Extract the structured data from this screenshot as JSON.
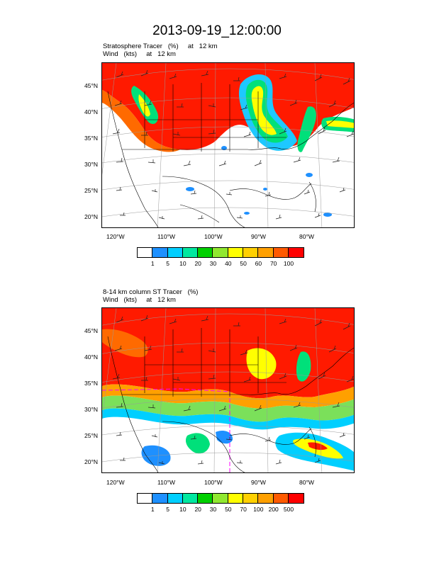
{
  "page_title": "2013-09-19_12:00:00",
  "panels": [
    {
      "subtitle_line1": "Stratosphere Tracer   (%)     at   12 km",
      "subtitle_line2": "Wind   (kts)     at   12 km",
      "lat_labels": [
        "45°N",
        "40°N",
        "35°N",
        "30°N",
        "25°N",
        "20°N"
      ],
      "lon_labels": [
        "120°W",
        "110°W",
        "100°W",
        "90°W",
        "80°W"
      ],
      "colorbar_labels": [
        "1",
        "5",
        "10",
        "20",
        "30",
        "40",
        "50",
        "60",
        "70",
        "100"
      ],
      "colorbar_colors": [
        "#ffffff",
        "#1e90ff",
        "#00cfff",
        "#00e8a0",
        "#00d000",
        "#90e830",
        "#ffff00",
        "#ffd000",
        "#ffa000",
        "#ff5a00",
        "#ff0000"
      ]
    },
    {
      "subtitle_line1": "8-14 km column ST Tracer   (%)",
      "subtitle_line2": "Wind   (kts)     at   12 km",
      "lat_labels": [
        "45°N",
        "40°N",
        "35°N",
        "30°N",
        "25°N",
        "20°N"
      ],
      "lon_labels": [
        "120°W",
        "110°W",
        "100°W",
        "90°W",
        "80°W"
      ],
      "colorbar_labels": [
        "1",
        "5",
        "10",
        "20",
        "30",
        "50",
        "70",
        "100",
        "200",
        "500"
      ],
      "colorbar_colors": [
        "#ffffff",
        "#1e90ff",
        "#00cfff",
        "#00e8a0",
        "#00d000",
        "#90e830",
        "#ffff00",
        "#ffd000",
        "#ffa000",
        "#ff5a00",
        "#ff0000"
      ]
    }
  ]
}
